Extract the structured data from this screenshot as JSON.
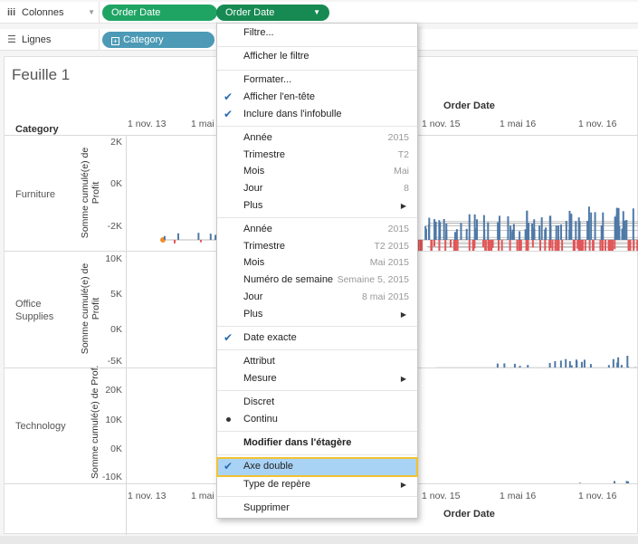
{
  "shelves": {
    "columns": {
      "label": "Colonnes",
      "pill1": "Order Date",
      "pill2": "Order Date"
    },
    "rows": {
      "label": "Lignes",
      "pill1": "Category"
    }
  },
  "sheet": {
    "title": "Feuille 1",
    "row_header": "Category",
    "col_header_top": "Order Date",
    "col_header_bottom": "Order Date",
    "top_ticks": [
      "1 nov. 13",
      "1 mai",
      "1 nov. 15",
      "1 mai 16",
      "1 nov. 16"
    ],
    "bottom_ticks": [
      "1 nov. 13",
      "1 mai",
      "1 nov. 15",
      "1 mai 16",
      "1 nov. 16"
    ],
    "categories": [
      {
        "name": "Furniture",
        "axis_title_line1": "Somme cumulé(e) de",
        "axis_title_line2": "Profit",
        "ticks": [
          "2K",
          "0K",
          "-2K"
        ]
      },
      {
        "name": "Office Supplies",
        "axis_title_line1": "Somme cumulé(e) de",
        "axis_title_line2": "Profit",
        "ticks": [
          "10K",
          "5K",
          "0K",
          "-5K"
        ]
      },
      {
        "name": "Technology",
        "axis_title_line1": "Somme cumulé(e) de Prof.",
        "axis_title_line2": "",
        "ticks": [
          "20K",
          "10K",
          "0K",
          "-10K"
        ]
      }
    ]
  },
  "menu": {
    "items": [
      {
        "label": "Filtre...",
        "right": ""
      },
      {
        "label": "Afficher le filtre",
        "right": ""
      },
      {
        "label": "Formater...",
        "right": ""
      },
      {
        "label": "Afficher l'en-tête",
        "right": "",
        "checked": true
      },
      {
        "label": "Inclure dans l'infobulle",
        "right": "",
        "checked": true
      },
      {
        "label": "Année",
        "right": "2015"
      },
      {
        "label": "Trimestre",
        "right": "T2"
      },
      {
        "label": "Mois",
        "right": "Mai"
      },
      {
        "label": "Jour",
        "right": "8"
      },
      {
        "label": "Plus",
        "right": "",
        "submenu": true
      },
      {
        "label": "Année",
        "right": "2015"
      },
      {
        "label": "Trimestre",
        "right": "T2 2015"
      },
      {
        "label": "Mois",
        "right": "Mai 2015"
      },
      {
        "label": "Numéro de semaine",
        "right": "Semaine 5, 2015"
      },
      {
        "label": "Jour",
        "right": "8 mai 2015"
      },
      {
        "label": "Plus",
        "right": "",
        "submenu": true
      },
      {
        "label": "Date exacte",
        "right": "",
        "checked": true
      },
      {
        "label": "Attribut",
        "right": ""
      },
      {
        "label": "Mesure",
        "right": "",
        "submenu": true
      },
      {
        "label": "Discret",
        "right": ""
      },
      {
        "label": "Continu",
        "right": "",
        "bullet": true
      },
      {
        "label": "Modifier dans l'étagère",
        "right": ""
      },
      {
        "label": "Axe double",
        "right": "",
        "checked": true
      },
      {
        "label": "Type de repère",
        "right": "",
        "submenu": true
      },
      {
        "label": "Supprimer",
        "right": ""
      }
    ]
  },
  "colors": {
    "pill_green": "#1fa463",
    "pill_blue": "#4c9ab5",
    "series_blue": "#4e79a7",
    "series_red": "#e15759",
    "series_orange": "#f28e2b",
    "highlight": "#a9d3f5",
    "highlight_border": "#f1c232"
  }
}
